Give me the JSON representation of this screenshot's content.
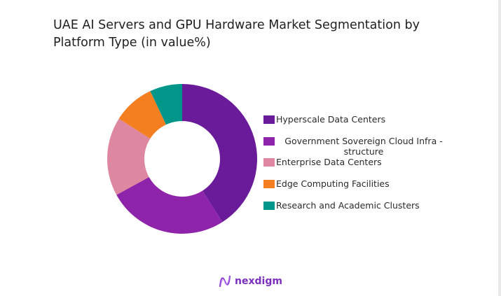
{
  "title": "UAE AI Servers and GPU Hardware Market Segmentation by Platform Type (in value%)",
  "chart_data": {
    "type": "pie",
    "donut": true,
    "title": "UAE AI Servers and GPU Hardware Market Segmentation by Platform Type (in value%)",
    "legend_position": "right",
    "categories": [
      "Hyperscale Data Centers",
      "Government Sovereign Cloud Infra -structure",
      "Enterprise Data Centers",
      "Edge Computing Facilities",
      "Research and Academic Clusters"
    ],
    "values": [
      41,
      26,
      17,
      9,
      7
    ],
    "colors": [
      "#6a1b9a",
      "#8e24aa",
      "#de87a0",
      "#f47f20",
      "#00968a"
    ]
  },
  "legend": {
    "items": [
      {
        "label": "Hyperscale Data Centers"
      },
      {
        "label": "Government Sovereign Cloud Infra -structure"
      },
      {
        "label": "Enterprise Data Centers"
      },
      {
        "label": "Edge Computing Facilities"
      },
      {
        "label": "Research and Academic Clusters"
      }
    ]
  },
  "logo": {
    "text": "nexdigm"
  }
}
